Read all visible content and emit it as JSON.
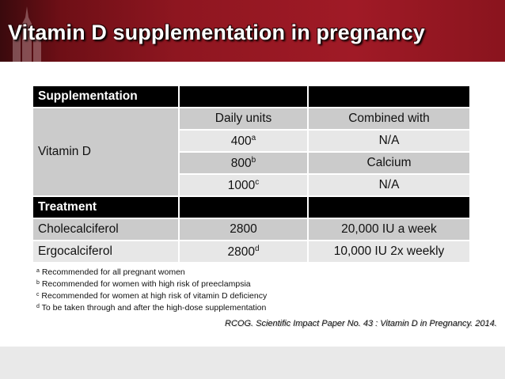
{
  "title": "Vitamin D supplementation in pregnancy",
  "table": {
    "supplementation_header": "Supplementation",
    "vitamin_label": "Vitamin D",
    "col_daily_units": "Daily units",
    "col_combined_with": "Combined with",
    "supplementation_rows": [
      {
        "units": "400",
        "mark": "a",
        "combined": "N/A"
      },
      {
        "units": "800",
        "mark": "b",
        "combined": "Calcium"
      },
      {
        "units": "1000",
        "mark": "c",
        "combined": "N/A"
      }
    ],
    "treatment_header": "Treatment",
    "treatment_rows": [
      {
        "name": "Cholecalciferol",
        "units": "2800",
        "mark": "",
        "combined": "20,000 IU a week"
      },
      {
        "name": "Ergocalciferol",
        "units": "2800",
        "mark": "d",
        "combined": "10,000 IU 2x weekly"
      }
    ]
  },
  "footnotes": [
    {
      "mark": "a",
      "text": "Recommended for all pregnant women"
    },
    {
      "mark": "b",
      "text": "Recommended for women with high risk of preeclampsia"
    },
    {
      "mark": "c",
      "text": "Recommended for women at high risk of vitamin D deficiency"
    },
    {
      "mark": "d",
      "text": "To be taken through and after the high-dose supplementation"
    }
  ],
  "citation": "RCOG. Scientific Impact Paper No. 43 : Vitamin D in Pregnancy. 2014.",
  "colors": {
    "banner": "#8e1620",
    "header_row": "#000000",
    "row_dark": "#cbcbcb",
    "row_light": "#e7e7e7"
  }
}
